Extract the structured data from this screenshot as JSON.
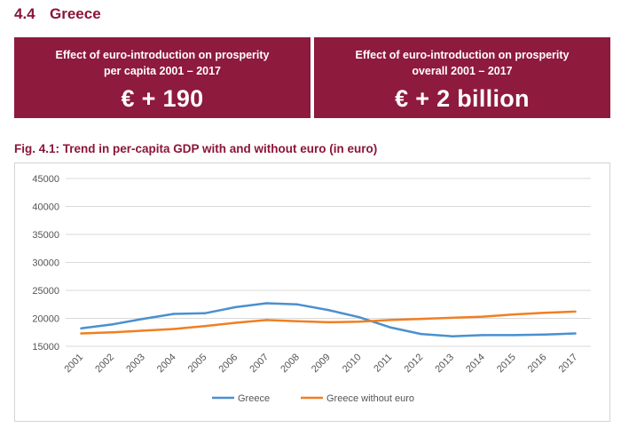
{
  "section": {
    "number": "4.4",
    "title": "Greece"
  },
  "boxes": [
    {
      "label_line1": "Effect of euro-introduction on prosperity",
      "label_line2": "per capita 2001 – 2017",
      "value": "€ + 190"
    },
    {
      "label_line1": "Effect of euro-introduction on prosperity",
      "label_line2": "overall 2001 – 2017",
      "value": "€ + 2 billion"
    }
  ],
  "colors": {
    "box_bg": "#8e1a3d",
    "heading": "#8b1538",
    "greece": "#4a90d0",
    "greece_without_euro": "#f07f22"
  },
  "chart_data": {
    "type": "line",
    "title": "Fig. 4.1: Trend in per-capita GDP with and without euro (in euro)",
    "x": [
      "2001",
      "2002",
      "2003",
      "2004",
      "2005",
      "2006",
      "2007",
      "2008",
      "2009",
      "2010",
      "2011",
      "2012",
      "2013",
      "2014",
      "2015",
      "2016",
      "2017"
    ],
    "series": [
      {
        "name": "Greece",
        "color": "#4a90d0",
        "values": [
          18200,
          18900,
          19900,
          20800,
          20900,
          22000,
          22700,
          22500,
          21500,
          20200,
          18400,
          17200,
          16800,
          17000,
          17000,
          17100,
          17300
        ]
      },
      {
        "name": "Greece without euro",
        "color": "#f07f22",
        "values": [
          17300,
          17500,
          17800,
          18100,
          18600,
          19200,
          19700,
          19500,
          19300,
          19400,
          19700,
          19900,
          20100,
          20300,
          20700,
          21000,
          21200
        ]
      }
    ],
    "ylim": [
      15000,
      45000
    ],
    "yticks": [
      "15000",
      "20000",
      "25000",
      "30000",
      "35000",
      "40000",
      "45000"
    ],
    "grid": true,
    "legend": "bottom"
  }
}
